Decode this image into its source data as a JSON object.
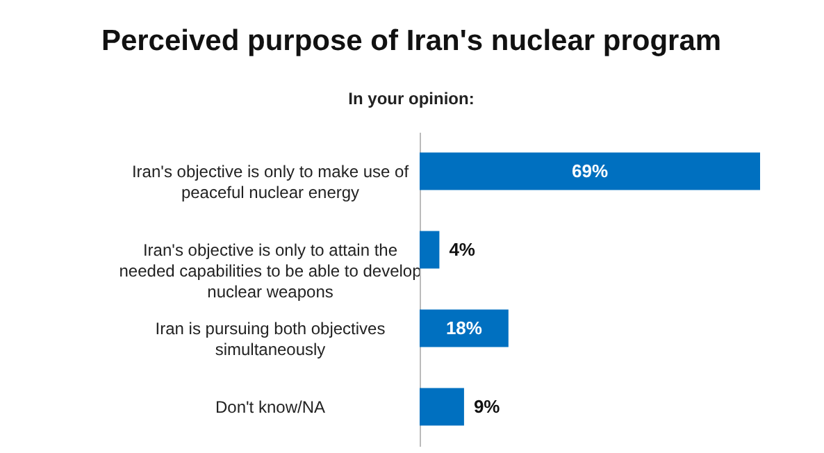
{
  "chart_data": {
    "type": "bar",
    "orientation": "horizontal",
    "title": "Perceived purpose of Iran's nuclear program",
    "subtitle": "In your opinion:",
    "categories": [
      "Iran's objective is only to make use of peaceful nuclear energy",
      "Iran's objective is only to attain the needed capabilities to be able to develop nuclear weapons",
      "Iran is pursuing both objectives simultaneously",
      "Don't know/NA"
    ],
    "values": [
      69,
      4,
      18,
      9
    ],
    "value_labels": [
      "69%",
      "4%",
      "18%",
      "9%"
    ],
    "color": "#0070c0"
  }
}
